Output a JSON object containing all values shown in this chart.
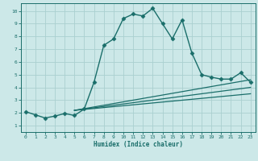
{
  "xlabel": "Humidex (Indice chaleur)",
  "ylabel": "",
  "bg_color": "#cce8e8",
  "grid_color": "#aad0d0",
  "line_color": "#1a6e6a",
  "xlim": [
    -0.5,
    23.5
  ],
  "ylim": [
    0.5,
    10.6
  ],
  "xticks": [
    0,
    1,
    2,
    3,
    4,
    5,
    6,
    7,
    8,
    9,
    10,
    11,
    12,
    13,
    14,
    15,
    16,
    17,
    18,
    19,
    20,
    21,
    22,
    23
  ],
  "yticks": [
    1,
    2,
    3,
    4,
    5,
    6,
    7,
    8,
    9,
    10
  ],
  "series": [
    {
      "x": [
        0,
        1,
        2,
        3,
        4,
        5,
        6,
        7,
        8,
        9,
        10,
        11,
        12,
        13,
        14,
        15,
        16,
        17,
        18,
        19,
        20,
        21,
        22,
        23
      ],
      "y": [
        2.1,
        1.85,
        1.6,
        1.75,
        1.95,
        1.8,
        2.3,
        4.4,
        7.3,
        7.8,
        9.4,
        9.75,
        9.6,
        10.2,
        9.0,
        7.8,
        9.3,
        6.7,
        5.0,
        4.8,
        4.65,
        4.65,
        5.15,
        4.4
      ],
      "marker": "D",
      "markersize": 2.5,
      "linewidth": 1.0
    },
    {
      "x": [
        5,
        23
      ],
      "y": [
        2.2,
        3.5
      ],
      "marker": null,
      "linewidth": 0.9
    },
    {
      "x": [
        5,
        23
      ],
      "y": [
        2.2,
        4.0
      ],
      "marker": null,
      "linewidth": 0.9
    },
    {
      "x": [
        5,
        23
      ],
      "y": [
        2.2,
        4.6
      ],
      "marker": null,
      "linewidth": 0.9
    }
  ]
}
